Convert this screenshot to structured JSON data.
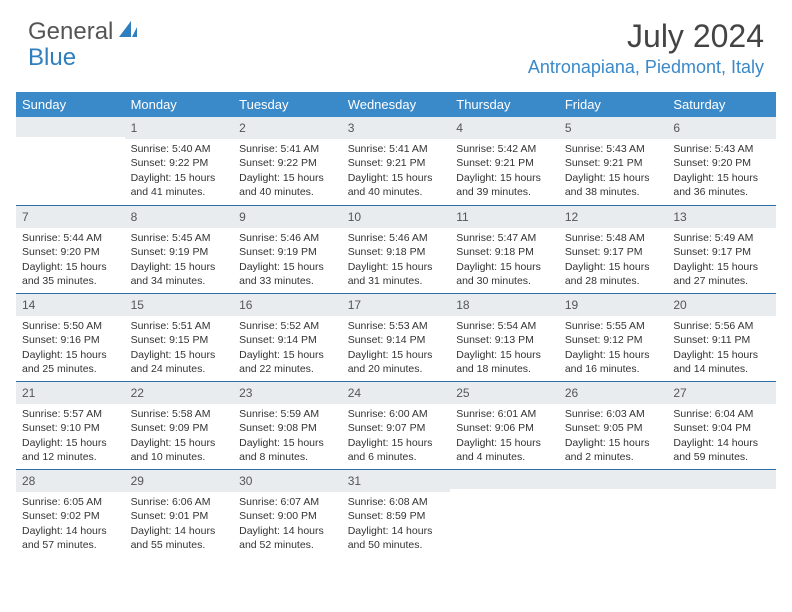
{
  "logo": {
    "text_a": "General",
    "text_b": "Blue"
  },
  "title": "July 2024",
  "location": "Antronapiana, Piedmont, Italy",
  "header_bg": "#3a89c9",
  "daybar_bg": "#e9ecef",
  "daybar_border": "#2f6fa8",
  "weekdays": [
    "Sunday",
    "Monday",
    "Tuesday",
    "Wednesday",
    "Thursday",
    "Friday",
    "Saturday"
  ],
  "weeks": [
    [
      {
        "n": "",
        "sr": "",
        "ss": "",
        "dl": ""
      },
      {
        "n": "1",
        "sr": "5:40 AM",
        "ss": "9:22 PM",
        "dl": "15 hours and 41 minutes."
      },
      {
        "n": "2",
        "sr": "5:41 AM",
        "ss": "9:22 PM",
        "dl": "15 hours and 40 minutes."
      },
      {
        "n": "3",
        "sr": "5:41 AM",
        "ss": "9:21 PM",
        "dl": "15 hours and 40 minutes."
      },
      {
        "n": "4",
        "sr": "5:42 AM",
        "ss": "9:21 PM",
        "dl": "15 hours and 39 minutes."
      },
      {
        "n": "5",
        "sr": "5:43 AM",
        "ss": "9:21 PM",
        "dl": "15 hours and 38 minutes."
      },
      {
        "n": "6",
        "sr": "5:43 AM",
        "ss": "9:20 PM",
        "dl": "15 hours and 36 minutes."
      }
    ],
    [
      {
        "n": "7",
        "sr": "5:44 AM",
        "ss": "9:20 PM",
        "dl": "15 hours and 35 minutes."
      },
      {
        "n": "8",
        "sr": "5:45 AM",
        "ss": "9:19 PM",
        "dl": "15 hours and 34 minutes."
      },
      {
        "n": "9",
        "sr": "5:46 AM",
        "ss": "9:19 PM",
        "dl": "15 hours and 33 minutes."
      },
      {
        "n": "10",
        "sr": "5:46 AM",
        "ss": "9:18 PM",
        "dl": "15 hours and 31 minutes."
      },
      {
        "n": "11",
        "sr": "5:47 AM",
        "ss": "9:18 PM",
        "dl": "15 hours and 30 minutes."
      },
      {
        "n": "12",
        "sr": "5:48 AM",
        "ss": "9:17 PM",
        "dl": "15 hours and 28 minutes."
      },
      {
        "n": "13",
        "sr": "5:49 AM",
        "ss": "9:17 PM",
        "dl": "15 hours and 27 minutes."
      }
    ],
    [
      {
        "n": "14",
        "sr": "5:50 AM",
        "ss": "9:16 PM",
        "dl": "15 hours and 25 minutes."
      },
      {
        "n": "15",
        "sr": "5:51 AM",
        "ss": "9:15 PM",
        "dl": "15 hours and 24 minutes."
      },
      {
        "n": "16",
        "sr": "5:52 AM",
        "ss": "9:14 PM",
        "dl": "15 hours and 22 minutes."
      },
      {
        "n": "17",
        "sr": "5:53 AM",
        "ss": "9:14 PM",
        "dl": "15 hours and 20 minutes."
      },
      {
        "n": "18",
        "sr": "5:54 AM",
        "ss": "9:13 PM",
        "dl": "15 hours and 18 minutes."
      },
      {
        "n": "19",
        "sr": "5:55 AM",
        "ss": "9:12 PM",
        "dl": "15 hours and 16 minutes."
      },
      {
        "n": "20",
        "sr": "5:56 AM",
        "ss": "9:11 PM",
        "dl": "15 hours and 14 minutes."
      }
    ],
    [
      {
        "n": "21",
        "sr": "5:57 AM",
        "ss": "9:10 PM",
        "dl": "15 hours and 12 minutes."
      },
      {
        "n": "22",
        "sr": "5:58 AM",
        "ss": "9:09 PM",
        "dl": "15 hours and 10 minutes."
      },
      {
        "n": "23",
        "sr": "5:59 AM",
        "ss": "9:08 PM",
        "dl": "15 hours and 8 minutes."
      },
      {
        "n": "24",
        "sr": "6:00 AM",
        "ss": "9:07 PM",
        "dl": "15 hours and 6 minutes."
      },
      {
        "n": "25",
        "sr": "6:01 AM",
        "ss": "9:06 PM",
        "dl": "15 hours and 4 minutes."
      },
      {
        "n": "26",
        "sr": "6:03 AM",
        "ss": "9:05 PM",
        "dl": "15 hours and 2 minutes."
      },
      {
        "n": "27",
        "sr": "6:04 AM",
        "ss": "9:04 PM",
        "dl": "14 hours and 59 minutes."
      }
    ],
    [
      {
        "n": "28",
        "sr": "6:05 AM",
        "ss": "9:02 PM",
        "dl": "14 hours and 57 minutes."
      },
      {
        "n": "29",
        "sr": "6:06 AM",
        "ss": "9:01 PM",
        "dl": "14 hours and 55 minutes."
      },
      {
        "n": "30",
        "sr": "6:07 AM",
        "ss": "9:00 PM",
        "dl": "14 hours and 52 minutes."
      },
      {
        "n": "31",
        "sr": "6:08 AM",
        "ss": "8:59 PM",
        "dl": "14 hours and 50 minutes."
      },
      {
        "n": "",
        "sr": "",
        "ss": "",
        "dl": ""
      },
      {
        "n": "",
        "sr": "",
        "ss": "",
        "dl": ""
      },
      {
        "n": "",
        "sr": "",
        "ss": "",
        "dl": ""
      }
    ]
  ]
}
